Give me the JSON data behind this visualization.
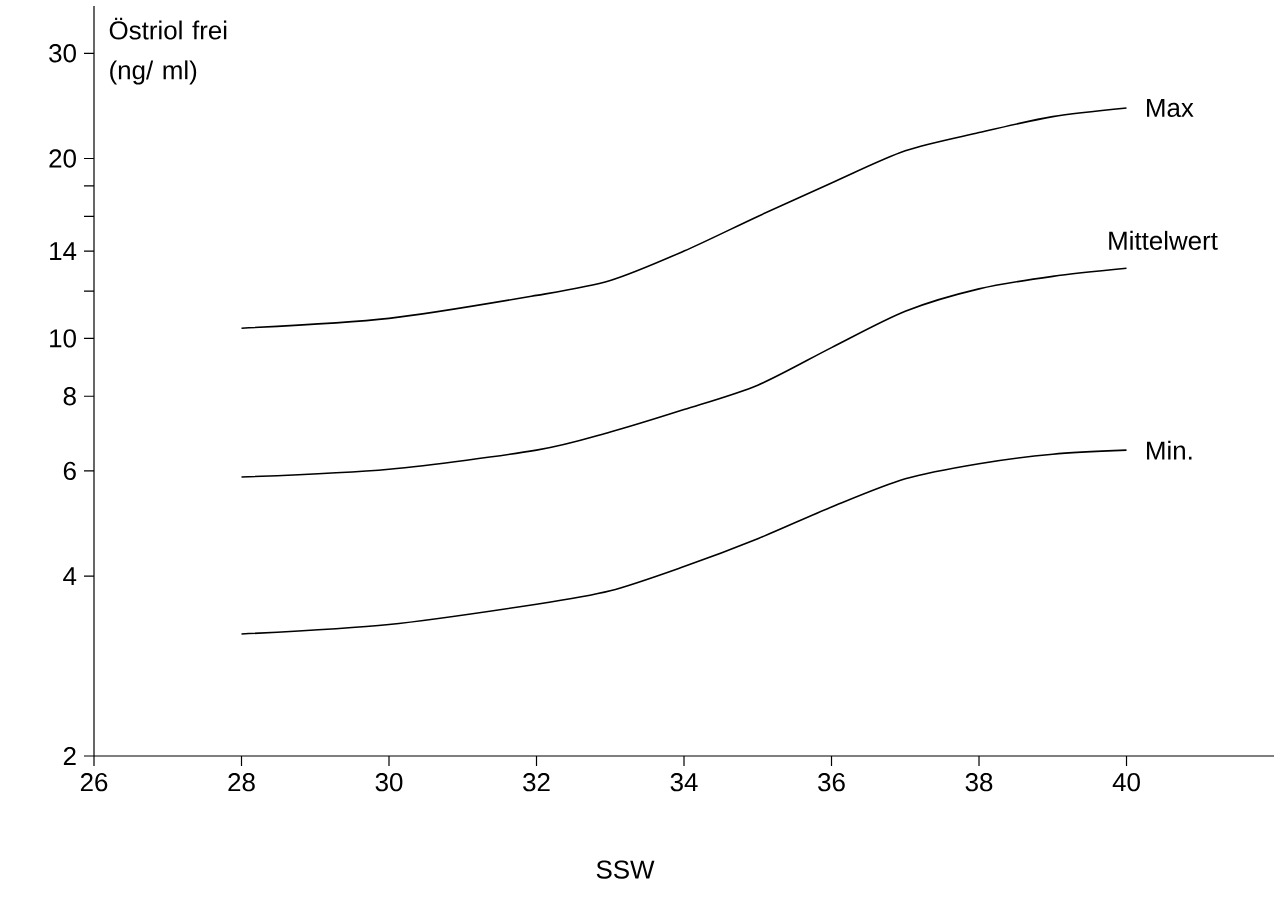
{
  "chart_data": {
    "type": "line",
    "xlabel": "SSW",
    "ylabel": "Östriol frei (ng/ ml)",
    "log": "y",
    "grid": false,
    "marker": "none",
    "line_style": "solid",
    "xlim": [
      26,
      42
    ],
    "xticks": [
      26,
      28,
      30,
      32,
      34,
      36,
      38,
      40
    ],
    "ylim": [
      2,
      36
    ],
    "yticks": [
      2,
      4,
      6,
      8,
      10,
      {
        "value": 12,
        "label": null
      },
      14,
      {
        "value": 16,
        "label": null
      },
      {
        "value": 18,
        "label": null
      },
      20,
      30
    ],
    "x": [
      28,
      30,
      32,
      33,
      34,
      35,
      36,
      37,
      38,
      39,
      40
    ],
    "series": [
      {
        "name": "Max",
        "color": "#000000",
        "values": [
          10.4,
          10.8,
          11.8,
          12.5,
          14.0,
          16.0,
          18.2,
          20.6,
          22.1,
          23.5,
          24.3
        ]
      },
      {
        "name": "Mittelwert",
        "color": "#000000",
        "values": [
          5.86,
          6.04,
          6.5,
          6.97,
          7.6,
          8.35,
          9.65,
          11.1,
          12.1,
          12.7,
          13.1
        ]
      },
      {
        "name": "Min.",
        "color": "#000000",
        "values": [
          3.2,
          3.32,
          3.59,
          3.78,
          4.15,
          4.62,
          5.22,
          5.82,
          6.17,
          6.4,
          6.5
        ]
      }
    ]
  }
}
